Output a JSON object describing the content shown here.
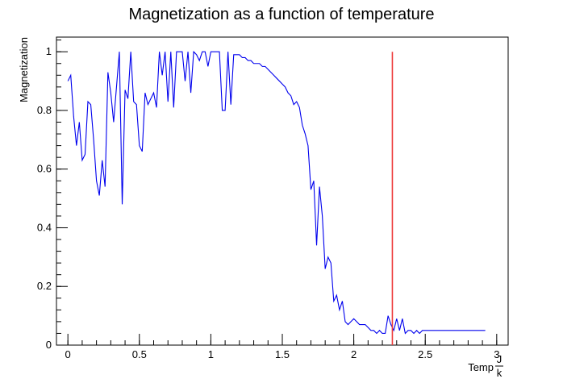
{
  "chart_data": {
    "type": "line",
    "title": "Magnetization as a function of temperature",
    "xlabel": "Temp",
    "xlabel_unit_num": "J",
    "xlabel_unit_den": "k",
    "ylabel": "Magnetization",
    "xlim": [
      -0.08,
      3.08
    ],
    "ylim": [
      0,
      1.05
    ],
    "x_ticks": [
      0,
      0.5,
      1,
      1.5,
      2,
      2.5,
      3
    ],
    "x_tick_labels": [
      "0",
      "0.5",
      "1",
      "1.5",
      "2",
      "2.5",
      "3"
    ],
    "y_ticks": [
      0,
      0.2,
      0.4,
      0.6,
      0.8,
      1
    ],
    "y_tick_labels": [
      "0",
      "0.2",
      "0.4",
      "0.6",
      "0.8",
      "1"
    ],
    "grid": false,
    "series": [
      {
        "color": "#0000ee",
        "x": [
          0.0,
          0.02,
          0.04,
          0.06,
          0.08,
          0.1,
          0.12,
          0.14,
          0.16,
          0.18,
          0.2,
          0.22,
          0.24,
          0.26,
          0.28,
          0.3,
          0.32,
          0.34,
          0.36,
          0.38,
          0.4,
          0.42,
          0.44,
          0.46,
          0.48,
          0.5,
          0.52,
          0.54,
          0.56,
          0.58,
          0.6,
          0.62,
          0.64,
          0.66,
          0.68,
          0.7,
          0.72,
          0.74,
          0.76,
          0.78,
          0.8,
          0.82,
          0.84,
          0.86,
          0.88,
          0.9,
          0.92,
          0.94,
          0.96,
          0.98,
          1.0,
          1.02,
          1.04,
          1.06,
          1.08,
          1.1,
          1.12,
          1.14,
          1.16,
          1.18,
          1.2,
          1.22,
          1.24,
          1.26,
          1.28,
          1.3,
          1.32,
          1.34,
          1.36,
          1.38,
          1.4,
          1.42,
          1.44,
          1.46,
          1.48,
          1.5,
          1.52,
          1.54,
          1.56,
          1.58,
          1.6,
          1.62,
          1.64,
          1.66,
          1.68,
          1.7,
          1.72,
          1.74,
          1.76,
          1.78,
          1.8,
          1.82,
          1.84,
          1.86,
          1.88,
          1.9,
          1.92,
          1.94,
          1.96,
          1.98,
          2.0,
          2.02,
          2.04,
          2.06,
          2.08,
          2.1,
          2.12,
          2.14,
          2.16,
          2.18,
          2.2,
          2.22,
          2.24,
          2.26,
          2.28,
          2.3,
          2.32,
          2.34,
          2.36,
          2.38,
          2.4,
          2.42,
          2.44,
          2.46,
          2.48,
          2.5,
          2.52,
          2.54,
          2.56,
          2.58,
          2.6,
          2.62,
          2.64,
          2.66,
          2.68,
          2.7,
          2.72,
          2.74,
          2.76,
          2.78,
          2.8,
          2.82,
          2.84,
          2.86,
          2.88,
          2.9,
          2.92
        ],
        "y": [
          0.9,
          0.92,
          0.78,
          0.68,
          0.76,
          0.63,
          0.65,
          0.83,
          0.82,
          0.7,
          0.56,
          0.51,
          0.63,
          0.54,
          0.93,
          0.86,
          0.76,
          0.88,
          1.0,
          0.48,
          0.87,
          0.84,
          1.0,
          0.83,
          0.82,
          0.68,
          0.66,
          0.86,
          0.82,
          0.84,
          0.86,
          0.81,
          1.0,
          0.92,
          1.0,
          0.83,
          1.0,
          0.81,
          1.0,
          1.0,
          1.0,
          0.9,
          1.0,
          0.86,
          1.0,
          0.99,
          0.97,
          1.0,
          1.0,
          0.95,
          1.0,
          1.0,
          1.0,
          1.0,
          0.8,
          0.8,
          1.0,
          0.82,
          0.99,
          0.99,
          0.99,
          0.98,
          0.98,
          0.97,
          0.97,
          0.96,
          0.96,
          0.96,
          0.95,
          0.95,
          0.94,
          0.93,
          0.92,
          0.91,
          0.9,
          0.89,
          0.88,
          0.86,
          0.85,
          0.82,
          0.83,
          0.81,
          0.75,
          0.72,
          0.68,
          0.53,
          0.56,
          0.34,
          0.54,
          0.44,
          0.26,
          0.3,
          0.28,
          0.15,
          0.17,
          0.12,
          0.15,
          0.08,
          0.07,
          0.08,
          0.09,
          0.08,
          0.07,
          0.07,
          0.07,
          0.06,
          0.05,
          0.05,
          0.04,
          0.05,
          0.04,
          0.04,
          0.1,
          0.07,
          0.05,
          0.09,
          0.05,
          0.09,
          0.04,
          0.05,
          0.05,
          0.04,
          0.05,
          0.04,
          0.05,
          0.05,
          0.05,
          0.05,
          0.05,
          0.05,
          0.05,
          0.05,
          0.05,
          0.05,
          0.05,
          0.05,
          0.05,
          0.05,
          0.05,
          0.05,
          0.05,
          0.05,
          0.05,
          0.05,
          0.05,
          0.05,
          0.05
        ]
      }
    ],
    "vertical_lines": [
      {
        "x": 2.27,
        "color": "#ee3b3b"
      }
    ]
  }
}
